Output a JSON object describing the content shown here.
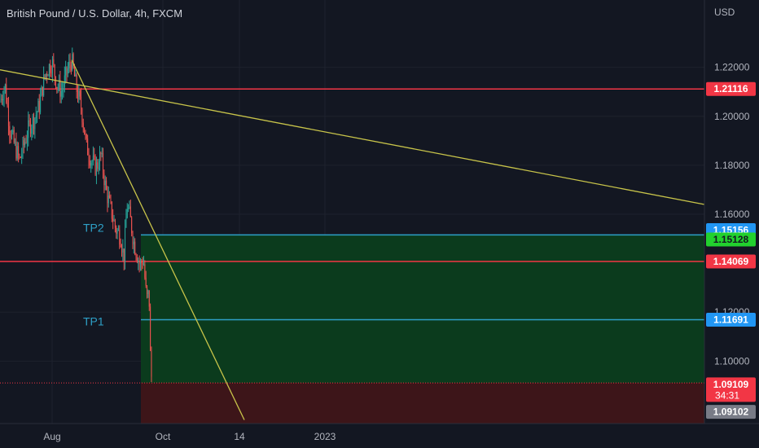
{
  "header": {
    "title": "British Pound / U.S. Dollar, 4h, FXCM"
  },
  "chart_data": {
    "type": "candlestick",
    "title": "British Pound / U.S. Dollar, 4h, FXCM",
    "y_unit": "USD",
    "ylim": [
      1.0745,
      1.2475
    ],
    "y_ticks": [
      "1.22000",
      "1.20000",
      "1.18000",
      "1.16000",
      "1.12000",
      "1.10000"
    ],
    "y_tick_values": [
      1.22,
      1.2,
      1.18,
      1.16,
      1.12,
      1.1
    ],
    "x_ticks": [
      "Aug",
      "Oct",
      "14",
      "2023"
    ],
    "grid": true,
    "up_color": "#26a69a",
    "down_color": "#ef5350",
    "price_path": [
      {
        "t": 0,
        "p": 1.206
      },
      {
        "t": 6,
        "p": 1.213
      },
      {
        "t": 12,
        "p": 1.195
      },
      {
        "t": 18,
        "p": 1.188
      },
      {
        "t": 24,
        "p": 1.182
      },
      {
        "t": 30,
        "p": 1.189
      },
      {
        "t": 36,
        "p": 1.196
      },
      {
        "t": 42,
        "p": 1.199
      },
      {
        "t": 48,
        "p": 1.204
      },
      {
        "t": 54,
        "p": 1.215
      },
      {
        "t": 58,
        "p": 1.219
      },
      {
        "t": 64,
        "p": 1.222
      },
      {
        "t": 70,
        "p": 1.213
      },
      {
        "t": 76,
        "p": 1.21
      },
      {
        "t": 82,
        "p": 1.218
      },
      {
        "t": 88,
        "p": 1.223
      },
      {
        "t": 94,
        "p": 1.211
      },
      {
        "t": 100,
        "p": 1.203
      },
      {
        "t": 106,
        "p": 1.188
      },
      {
        "t": 112,
        "p": 1.182
      },
      {
        "t": 118,
        "p": 1.179
      },
      {
        "t": 124,
        "p": 1.184
      },
      {
        "t": 130,
        "p": 1.17
      },
      {
        "t": 136,
        "p": 1.162
      },
      {
        "t": 142,
        "p": 1.154
      },
      {
        "t": 148,
        "p": 1.151
      },
      {
        "t": 152,
        "p": 1.142
      },
      {
        "t": 156,
        "p": 1.164
      },
      {
        "t": 160,
        "p": 1.158
      },
      {
        "t": 164,
        "p": 1.149
      },
      {
        "t": 168,
        "p": 1.144
      },
      {
        "t": 172,
        "p": 1.139
      },
      {
        "t": 176,
        "p": 1.142
      },
      {
        "t": 180,
        "p": 1.125
      },
      {
        "t": 183,
        "p": 1.128
      },
      {
        "t": 185,
        "p": 1.096
      },
      {
        "t": 187,
        "p": 1.0911
      }
    ],
    "horizontal_lines": [
      {
        "price": 1.21116,
        "label": "1.21116",
        "color": "#f23645"
      },
      {
        "price": 1.14069,
        "label": "1.14069",
        "color": "#f23645"
      },
      {
        "price": 1.15156,
        "label": "1.15156",
        "color": "#2ea0c7"
      },
      {
        "price": 1.11691,
        "label": "1.11691",
        "color": "#2ea0c7"
      }
    ],
    "trendlines": [
      {
        "from": {
          "t": 0,
          "p": 1.219
        },
        "to": {
          "t": 865,
          "p": 1.164
        },
        "color": "#c8c44a"
      },
      {
        "from": {
          "t": 88,
          "p": 1.223
        },
        "to": {
          "t": 300,
          "p": 1.076
        },
        "color": "#c8c44a"
      }
    ],
    "position": {
      "entry": 1.09109,
      "target": 1.15156,
      "stop_visible_edge": 1.0745,
      "start_t": 173,
      "profit_color": "#0b3b1d",
      "loss_color": "#3d1519"
    },
    "annotations": [
      {
        "text": "TP2",
        "price": 1.1545
      },
      {
        "text": "TP1",
        "price": 1.1163
      }
    ],
    "price_tags": [
      {
        "label": "1.21116",
        "price": 1.21116,
        "bg": "#f23645",
        "fg": "#ffffff"
      },
      {
        "label": "1.15156",
        "price": 1.1535,
        "bg": "#2196f3",
        "fg": "#ffffff"
      },
      {
        "label": "1.15128",
        "price": 1.1497,
        "bg": "#22d12e",
        "fg": "#131722"
      },
      {
        "label": "1.14069",
        "price": 1.14069,
        "bg": "#f23645",
        "fg": "#ffffff"
      },
      {
        "label": "1.11691",
        "price": 1.11691,
        "bg": "#2196f3",
        "fg": "#ffffff"
      },
      {
        "label": "1.09109",
        "price": 1.0905,
        "bg": "#f23645",
        "fg": "#ffffff"
      },
      {
        "label": "1.09102",
        "price": 1.0793,
        "bg": "#787b86",
        "fg": "#ffffff"
      }
    ],
    "countdown": "34:31",
    "last_price": 1.09109
  }
}
